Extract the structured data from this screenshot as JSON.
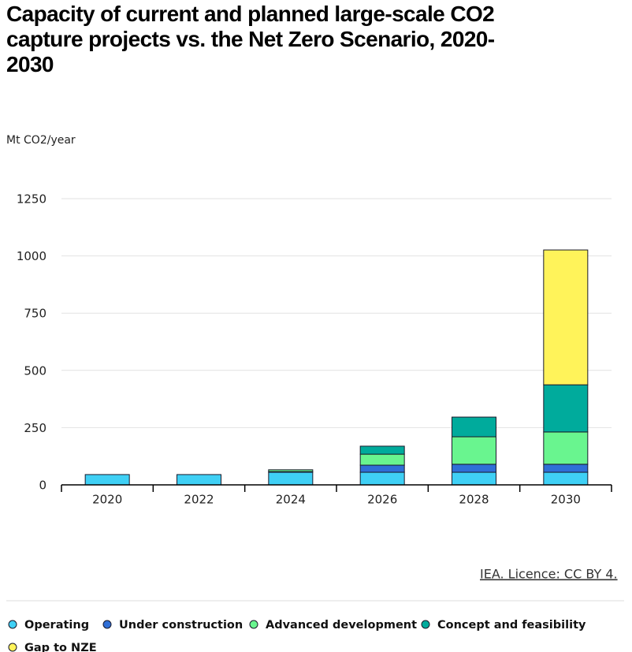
{
  "chart_data": {
    "type": "stacked-bar",
    "title": "Capacity of current and planned large-scale CO2 capture projects vs. the Net Zero Scenario, 2020-2030",
    "y_label": "Mt CO2/year",
    "source": "IEA. Licence: CC BY 4.",
    "categories": [
      "2020",
      "2022",
      "2024",
      "2026",
      "2028",
      "2030"
    ],
    "series": [
      {
        "name": "Operating",
        "color": "#3fd0f5",
        "values": [
          45,
          45,
          55,
          55,
          55,
          55
        ]
      },
      {
        "name": "Under construction",
        "color": "#2f6fd6",
        "values": [
          0,
          0,
          3,
          31,
          35,
          35
        ]
      },
      {
        "name": "Advanced development",
        "color": "#69f58f",
        "values": [
          0,
          0,
          8,
          48,
          120,
          141
        ]
      },
      {
        "name": "Concept and feasibility",
        "color": "#00ab9c",
        "values": [
          0,
          0,
          0,
          35,
          86,
          206
        ]
      },
      {
        "name": "Gap to NZE",
        "color": "#fff35a",
        "values": [
          0,
          0,
          0,
          0,
          0,
          589
        ]
      }
    ],
    "ylim": [
      0,
      1250
    ],
    "yticks": [
      0,
      250,
      500,
      750,
      1000,
      1250
    ],
    "grid": true
  }
}
